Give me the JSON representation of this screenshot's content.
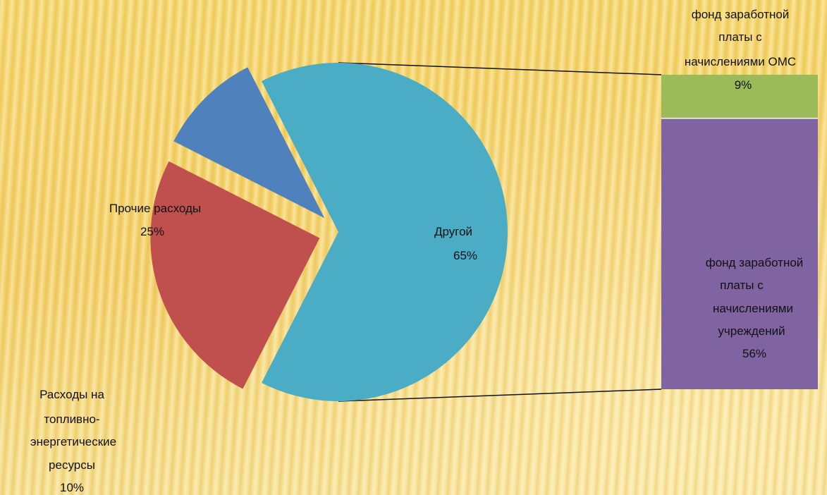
{
  "chart_data": {
    "type": "pie-of-bar",
    "pie": {
      "slices": [
        {
          "name": "Другой",
          "value": 65,
          "label": "65%",
          "color": "#4bacc6",
          "exploded": false
        },
        {
          "name": "Прочие расходы",
          "value": 25,
          "label": "25%",
          "color": "#c0504d",
          "exploded": true
        },
        {
          "name": "Расходы на топливно-энергетические ресурсы",
          "value": 10,
          "label": "10%",
          "color": "#4f81bd",
          "exploded": true
        }
      ]
    },
    "bar": {
      "of_slice": "Другой",
      "segments": [
        {
          "name": "фонд заработной платы с начислениями ОМС",
          "value": 9,
          "label": "9%",
          "color": "#9bbb59"
        },
        {
          "name": "фонд заработной платы с начислениями учреждений",
          "value": 56,
          "label": "56%",
          "color": "#8064a2"
        }
      ]
    },
    "labels": {
      "other_name": "Другой",
      "other_pct": "65%",
      "misc_name": "Прочие расходы",
      "misc_pct": "25%",
      "fuel_lines": [
        "Расходы на",
        "топливно-",
        "энергетические",
        "ресурсы"
      ],
      "fuel_pct": "10%",
      "oms_lines": [
        "фонд заработной",
        "платы с",
        "начислениями ОМС"
      ],
      "oms_pct": "9%",
      "inst_lines": [
        "фонд заработной",
        "платы с",
        "начислениями",
        "учреждений"
      ],
      "inst_pct": "56%"
    }
  }
}
